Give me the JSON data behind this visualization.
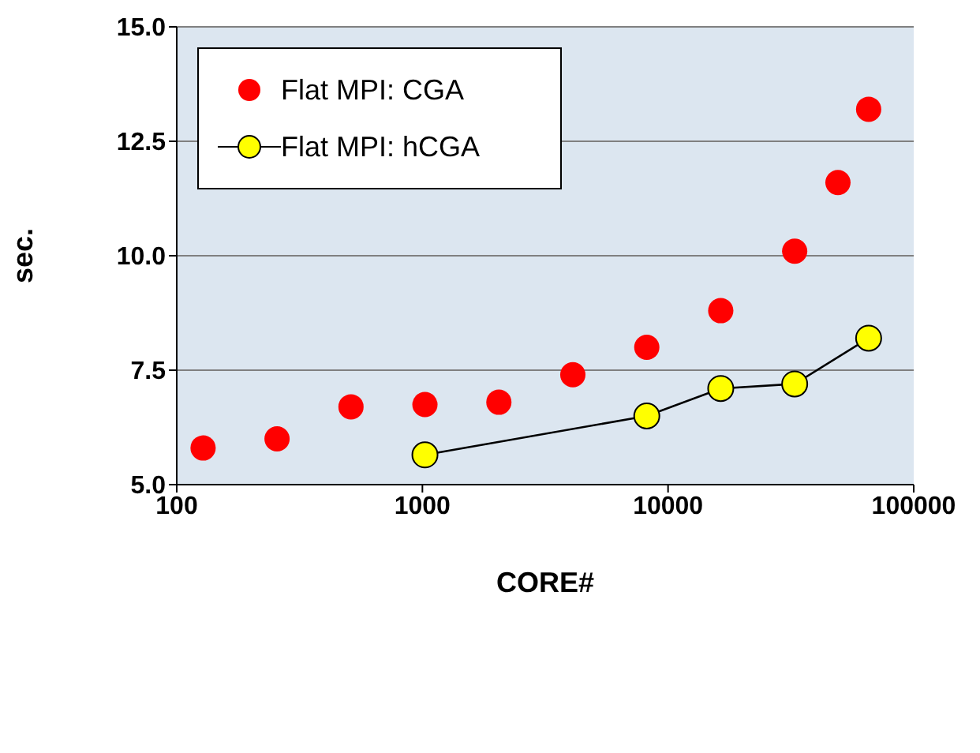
{
  "chart_data": {
    "type": "scatter",
    "xlabel": "CORE#",
    "ylabel": "sec.",
    "log": "x",
    "xlim": [
      100,
      100000
    ],
    "xticks": [
      100,
      1000,
      10000,
      100000
    ],
    "ylim": [
      5,
      15
    ],
    "yticks": [
      {
        "value": 5,
        "label": "5.0"
      },
      {
        "value": 7.5,
        "label": "7.5"
      },
      {
        "value": 10,
        "label": "10.0"
      },
      {
        "value": 12.5,
        "label": "12.5"
      },
      {
        "value": 15,
        "label": "15.0"
      }
    ],
    "grid": "y",
    "legend": "top left",
    "marker": "circle",
    "series": [
      {
        "name": "Flat MPI: CGA",
        "type": "scatter",
        "color": "#ff0000",
        "x": [
          128,
          256,
          512,
          1024,
          2048,
          4096,
          8192,
          16384,
          32768,
          49152,
          65536
        ],
        "values": [
          5.8,
          6.0,
          6.7,
          6.75,
          6.8,
          7.4,
          8.0,
          8.8,
          10.1,
          11.6,
          13.2
        ]
      },
      {
        "name": "Flat MPI: hCGA",
        "type": "line",
        "color": "#ffff00",
        "x": [
          1024,
          8192,
          16384,
          32768,
          65536
        ],
        "values": [
          5.65,
          6.5,
          7.1,
          7.2,
          8.2
        ]
      }
    ]
  }
}
